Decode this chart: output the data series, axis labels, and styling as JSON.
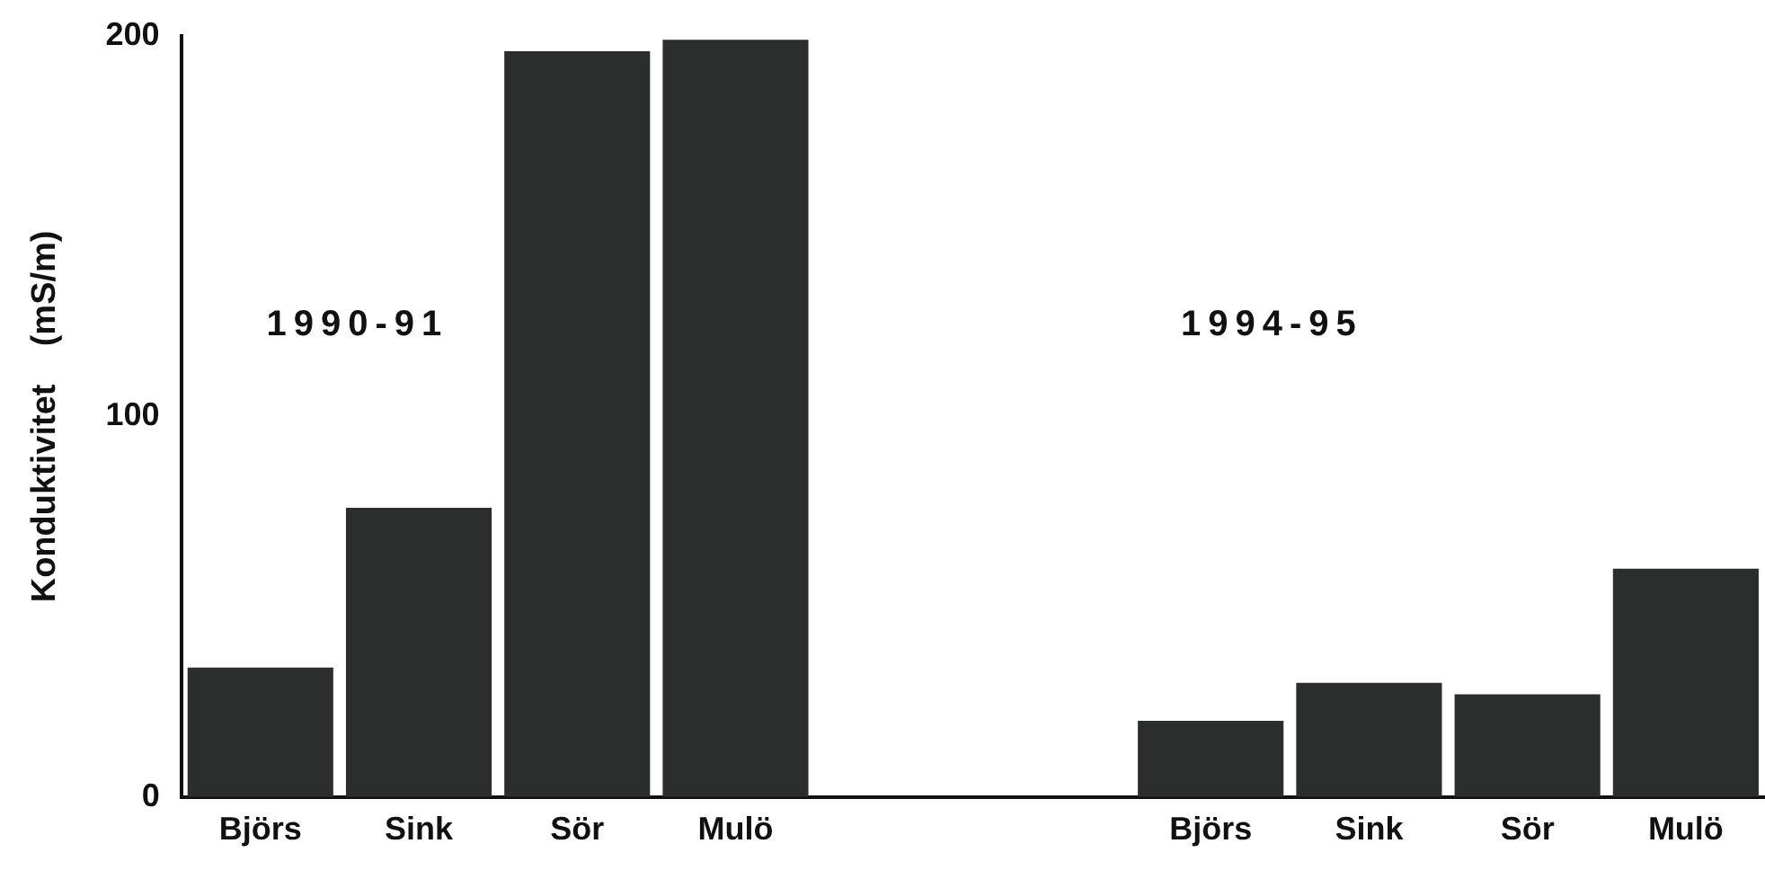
{
  "chart_data": {
    "type": "bar",
    "ylabel": "Konduktivitet    (mS/m)",
    "categories": [
      "Björs",
      "Sink",
      "Sör",
      "Mulö",
      null,
      null,
      "Björs",
      "Sink",
      "Sör",
      "Mulö"
    ],
    "values": [
      34,
      76,
      196,
      199,
      null,
      null,
      20,
      30,
      27,
      60
    ],
    "color": "#2b2e2d",
    "ylim": [
      0,
      200
    ],
    "yticks": [
      0,
      100,
      200
    ],
    "grid": false,
    "legend": false,
    "annotations": [
      "1990-91",
      "1994-95"
    ]
  }
}
